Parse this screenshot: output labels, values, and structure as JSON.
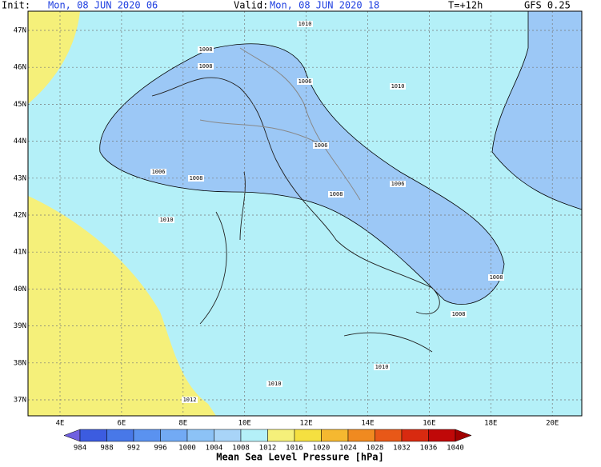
{
  "header": {
    "init_label": "Init:",
    "init": "Mon, 08 JUN 2020 06",
    "valid_label": "Valid:",
    "valid": "Mon, 08 JUN 2020 18",
    "lead": "T=+12h",
    "model": "GFS 0.25"
  },
  "lat_labels": [
    "47N",
    "46N",
    "45N",
    "44N",
    "43N",
    "42N",
    "41N",
    "40N",
    "39N",
    "38N",
    "37N"
  ],
  "lon_labels": [
    "4E",
    "6E",
    "8E",
    "10E",
    "12E",
    "14E",
    "16E",
    "18E",
    "20E"
  ],
  "contour_labels": [
    "1010",
    "1010",
    "1010",
    "1010",
    "1010",
    "1008",
    "1008",
    "1008",
    "1008",
    "1008",
    "1008",
    "1006",
    "1006",
    "1006",
    "1006",
    "1012"
  ],
  "colorbar": {
    "title": "Mean Sea Level Pressure [hPa]",
    "ticks": [
      984,
      988,
      992,
      996,
      1000,
      1004,
      1008,
      1012,
      1016,
      1020,
      1024,
      1028,
      1032,
      1036,
      1040
    ],
    "colors": [
      "#7060e0",
      "#3c5ce0",
      "#4878e8",
      "#5a92f0",
      "#72aaf4",
      "#8cc2f6",
      "#a8d4f8",
      "#b4f0f8",
      "#f5f07a",
      "#f5e040",
      "#f5b830",
      "#f08a20",
      "#e85818",
      "#d82a10",
      "#c00808",
      "#a00000"
    ]
  }
}
